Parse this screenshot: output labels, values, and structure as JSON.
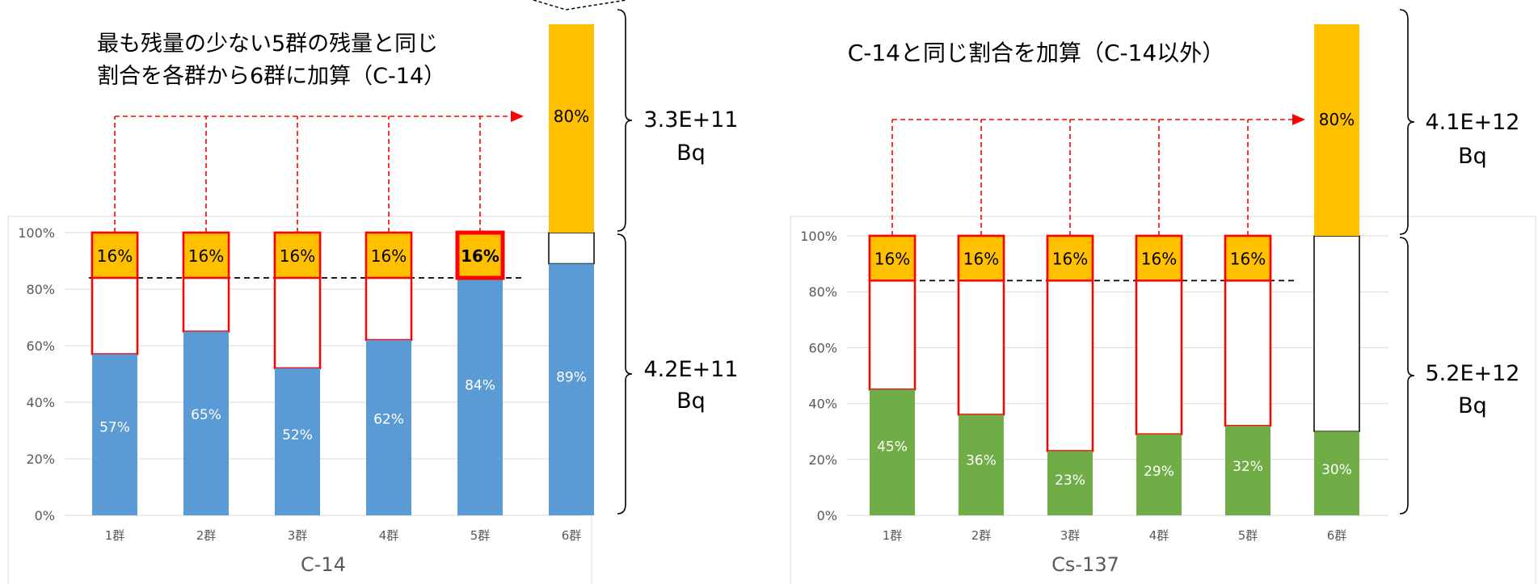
{
  "chart_data": [
    {
      "type": "bar",
      "title": "C-14",
      "categories": [
        "1群",
        "2群",
        "3群",
        "4群",
        "5群",
        "6群"
      ],
      "ylim": [
        0,
        100
      ],
      "yticks": [
        "0%",
        "20%",
        "40%",
        "60%",
        "80%",
        "100%"
      ],
      "grid": true,
      "base_values": [
        57,
        65,
        52,
        62,
        84,
        89
      ],
      "base_labels": [
        "57%",
        "65%",
        "52%",
        "62%",
        "84%",
        "89%"
      ],
      "top_values": [
        16,
        16,
        16,
        16,
        16
      ],
      "top_labels": [
        "16%",
        "16%",
        "16%",
        "16%",
        "16%"
      ],
      "highlight_index": 4,
      "stacked_value": 80,
      "stacked_label": "80%",
      "dashed_reference": 84,
      "annotation": [
        "最も残量の少ない5群の残量と同じ",
        "割合を各群から6群に加算（C-14）"
      ],
      "brace_upper": [
        "3.3E+11",
        "Bq"
      ],
      "brace_lower": [
        "4.2E+11",
        "Bq"
      ],
      "bar_color": "#5b9bd5",
      "accent_color": "#ffc000"
    },
    {
      "type": "bar",
      "title": "Cs-137",
      "categories": [
        "1群",
        "2群",
        "3群",
        "4群",
        "5群",
        "6群"
      ],
      "ylim": [
        0,
        100
      ],
      "yticks": [
        "0%",
        "20%",
        "40%",
        "60%",
        "80%",
        "100%"
      ],
      "grid": true,
      "base_values": [
        45,
        36,
        23,
        29,
        32,
        30
      ],
      "base_labels": [
        "45%",
        "36%",
        "23%",
        "29%",
        "32%",
        "30%"
      ],
      "top_values": [
        16,
        16,
        16,
        16,
        16
      ],
      "top_labels": [
        "16%",
        "16%",
        "16%",
        "16%",
        "16%"
      ],
      "highlight_index": -1,
      "stacked_value": 80,
      "stacked_label": "80%",
      "dashed_reference": 84,
      "annotation": [
        "C-14と同じ割合を加算（C-14以外）"
      ],
      "brace_upper": [
        "4.1E+12",
        "Bq"
      ],
      "brace_lower": [
        "5.2E+12",
        "Bq"
      ],
      "bar_color": "#70ad47",
      "accent_color": "#ffc000"
    }
  ]
}
